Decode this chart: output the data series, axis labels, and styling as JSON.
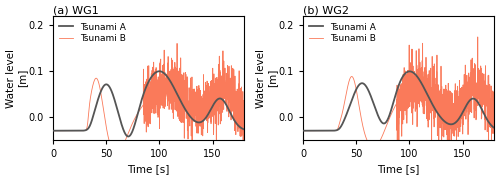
{
  "title_a": "(a) WG1",
  "title_b": "(b) WG2",
  "xlabel": "Time [s]",
  "ylabel": "Water level\n[m]",
  "ylim": [
    -0.05,
    0.22
  ],
  "xlim": [
    0,
    180
  ],
  "yticks": [
    0.0,
    0.1,
    0.2
  ],
  "xticks": [
    0,
    50,
    100,
    150
  ],
  "color_A": "#555555",
  "color_B": "#FA7A5A",
  "legend_A": "Tsunami A",
  "legend_B": "Tsunami B",
  "linewidth_A": 1.3,
  "linewidth_B": 0.6,
  "figsize": [
    5.0,
    1.8
  ],
  "dpi": 100
}
